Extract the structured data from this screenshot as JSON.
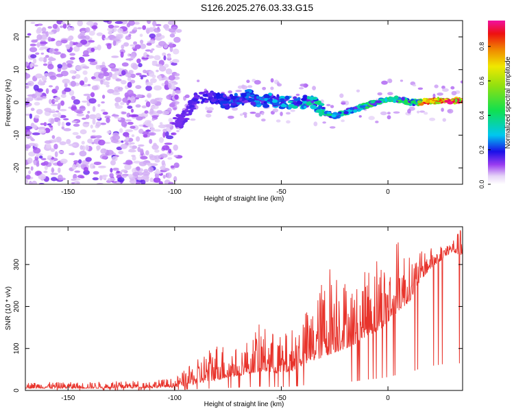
{
  "title": "S126.2025.276.03.33.G15",
  "colors": {
    "plot_line": "#e8342c",
    "frame": "#000000",
    "background": "#ffffff"
  },
  "chart_data": [
    {
      "type": "heatmap",
      "name": "spectrogram",
      "xlabel": "Height of straight line (km)",
      "ylabel": "Frequency (Hz)",
      "xlim": [
        -170,
        35
      ],
      "ylim": [
        -25,
        25
      ],
      "xticks": [
        -150,
        -100,
        -50,
        0
      ],
      "yticks": [
        -20,
        -10,
        0,
        10,
        20
      ],
      "colorbar": {
        "label": "Normalized spectral amplitude",
        "range": [
          0,
          0.95
        ],
        "ticks": [
          0.0,
          0.2,
          0.4,
          0.6,
          0.8
        ]
      },
      "signal_track": [
        [
          -100,
          -5
        ],
        [
          -97,
          -6
        ],
        [
          -93,
          -2
        ],
        [
          -90,
          1
        ],
        [
          -85,
          2
        ],
        [
          -80,
          1
        ],
        [
          -75,
          0
        ],
        [
          -70,
          1
        ],
        [
          -65,
          2
        ],
        [
          -60,
          0
        ],
        [
          -55,
          1
        ],
        [
          -50,
          0
        ],
        [
          -45,
          0
        ],
        [
          -40,
          0
        ],
        [
          -35,
          0
        ],
        [
          -30,
          -3
        ],
        [
          -25,
          -4
        ],
        [
          -20,
          -3
        ],
        [
          -15,
          -2
        ],
        [
          -10,
          -1
        ],
        [
          -5,
          0
        ],
        [
          0,
          1
        ],
        [
          5,
          1
        ],
        [
          10,
          0
        ],
        [
          15,
          0
        ],
        [
          20,
          0.5
        ],
        [
          25,
          0.5
        ],
        [
          30,
          0.5
        ],
        [
          35,
          0.5
        ]
      ]
    },
    {
      "type": "line",
      "name": "snr",
      "xlabel": "Height of straight line (km)",
      "ylabel": "SNR (10 * v/v)",
      "xlim": [
        -170,
        35
      ],
      "ylim": [
        0,
        390
      ],
      "xticks": [
        -150,
        -100,
        -50,
        0
      ],
      "yticks": [
        0,
        100,
        200,
        300
      ],
      "series": [
        {
          "name": "SNR",
          "color": "#e8342c",
          "envelope": {
            "x": [
              -170,
              -140,
              -110,
              -100,
              -90,
              -85,
              -80,
              -70,
              -60,
              -50,
              -45,
              -40,
              -35,
              -30,
              -25,
              -20,
              -15,
              -10,
              -5,
              0,
              5,
              10,
              15,
              20,
              25,
              30,
              35
            ],
            "base": [
              5,
              5,
              6,
              8,
              15,
              20,
              25,
              35,
              45,
              40,
              45,
              60,
              70,
              80,
              90,
              100,
              110,
              130,
              140,
              160,
              190,
              210,
              260,
              290,
              310,
              330,
              320
            ],
            "peak": [
              20,
              20,
              25,
              30,
              70,
              100,
              120,
              100,
              160,
              130,
              150,
              190,
              200,
              280,
              340,
              270,
              250,
              290,
              340,
              300,
              370,
              320,
              330,
              340,
              350,
              360,
              390
            ]
          }
        }
      ]
    }
  ]
}
